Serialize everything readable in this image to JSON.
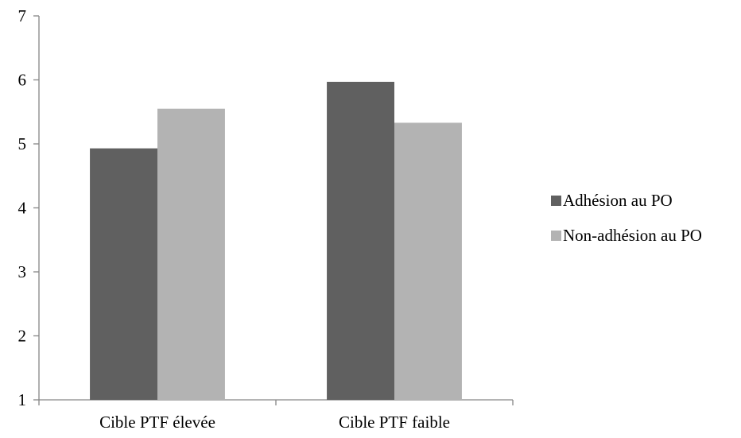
{
  "chart_data": {
    "type": "bar",
    "title": "",
    "xlabel": "",
    "ylabel": "",
    "categories": [
      "Cible PTF élevée",
      "Cible PTF faible"
    ],
    "series": [
      {
        "name": "Adhésion au PO",
        "values": [
          4.93,
          5.97
        ],
        "color": "#606060"
      },
      {
        "name": "Non-adhésion au PO",
        "values": [
          5.55,
          5.33
        ],
        "color": "#b3b3b3"
      }
    ],
    "ylim": [
      1,
      7
    ],
    "yticks": [
      1,
      2,
      3,
      4,
      5,
      6,
      7
    ],
    "grid": false,
    "legend_position": "right"
  }
}
